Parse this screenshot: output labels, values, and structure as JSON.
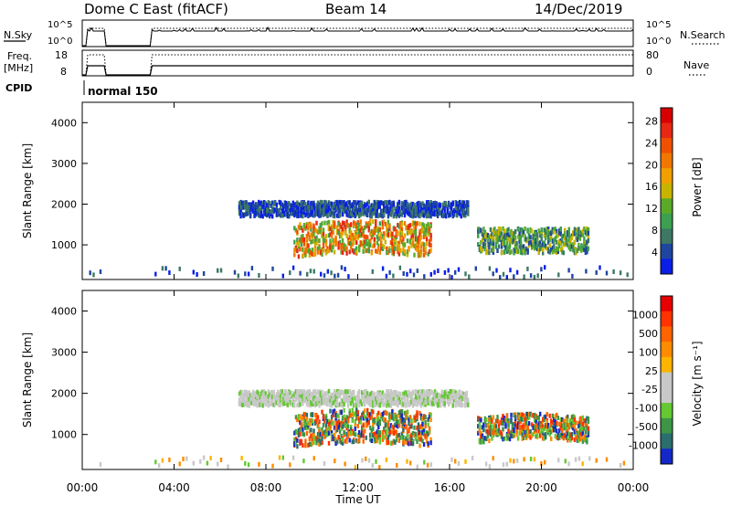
{
  "header": {
    "title": "Dome C East (fitACF)",
    "beam": "Beam 14",
    "date": "14/Dec/2019"
  },
  "nsky_panel": {
    "label": "N.Sky",
    "ytick_top": "10^5",
    "ytick_bottom": "10^0",
    "right_tick_top": "10^5",
    "right_tick_bottom": "10^0",
    "right_label": "N.Search"
  },
  "freq_panel": {
    "label_line1": "Freq.",
    "label_line2": "[MHz]",
    "ytick_top": "18",
    "ytick_bottom": "8",
    "right_tick_top": "80",
    "right_tick_bottom": "0",
    "right_label": "Nave"
  },
  "cpid_panel": {
    "label": "CPID",
    "mode_text": "normal 150"
  },
  "chart_data": [
    {
      "type": "heatmap",
      "name": "power",
      "ylabel": "Slant Range [km]",
      "yticks": [
        "1000",
        "2000",
        "3000",
        "4000"
      ],
      "ylim": [
        150,
        4500
      ],
      "xlim": [
        0,
        24
      ],
      "colorbar": {
        "label": "Power [dB]",
        "ticks": [
          "4",
          "8",
          "12",
          "16",
          "20",
          "24",
          "28"
        ],
        "colors": [
          "#0a1ee6",
          "#1e46a0",
          "#3c7864",
          "#3ca050",
          "#5aaa28",
          "#c8b400",
          "#f0a000",
          "#f07800",
          "#f05000",
          "#e62814",
          "#d70000"
        ]
      },
      "echo_regions": [
        {
          "t0": 9.2,
          "t1": 15.2,
          "r0": 700,
          "r1": 1500,
          "level": "high"
        },
        {
          "t0": 6.8,
          "t1": 16.8,
          "r0": 1700,
          "r1": 2050,
          "level": "low"
        },
        {
          "t0": 17.2,
          "t1": 22.0,
          "r0": 800,
          "r1": 1400,
          "level": "mid"
        }
      ]
    },
    {
      "type": "heatmap",
      "name": "velocity",
      "ylabel": "Slant Range [km]",
      "xlabel": "Time UT",
      "yticks": [
        "1000",
        "2000",
        "3000",
        "4000"
      ],
      "xticks": [
        "00:00",
        "04:00",
        "08:00",
        "12:00",
        "16:00",
        "20:00",
        "00:00"
      ],
      "ylim": [
        150,
        4500
      ],
      "xlim": [
        0,
        24
      ],
      "colorbar": {
        "label": "Velocity [m s⁻¹]",
        "ticks": [
          "1000",
          "500",
          "100",
          "25",
          "-25",
          "-100",
          "-500",
          "-1000"
        ],
        "colors": [
          "#1428c8",
          "#2a6e6e",
          "#3c9646",
          "#64c832",
          "#c8c8c8",
          "#c8c8c8",
          "#ffb400",
          "#ff8c00",
          "#ff6400",
          "#ff3200",
          "#e60000"
        ]
      },
      "echo_regions": [
        {
          "t0": 9.2,
          "t1": 15.2,
          "r0": 700,
          "r1": 1500,
          "level": "mixed"
        },
        {
          "t0": 6.8,
          "t1": 16.8,
          "r0": 1700,
          "r1": 2050,
          "level": "grey"
        },
        {
          "t0": 17.2,
          "t1": 22.0,
          "r0": 800,
          "r1": 1400,
          "level": "mixed"
        }
      ]
    }
  ]
}
